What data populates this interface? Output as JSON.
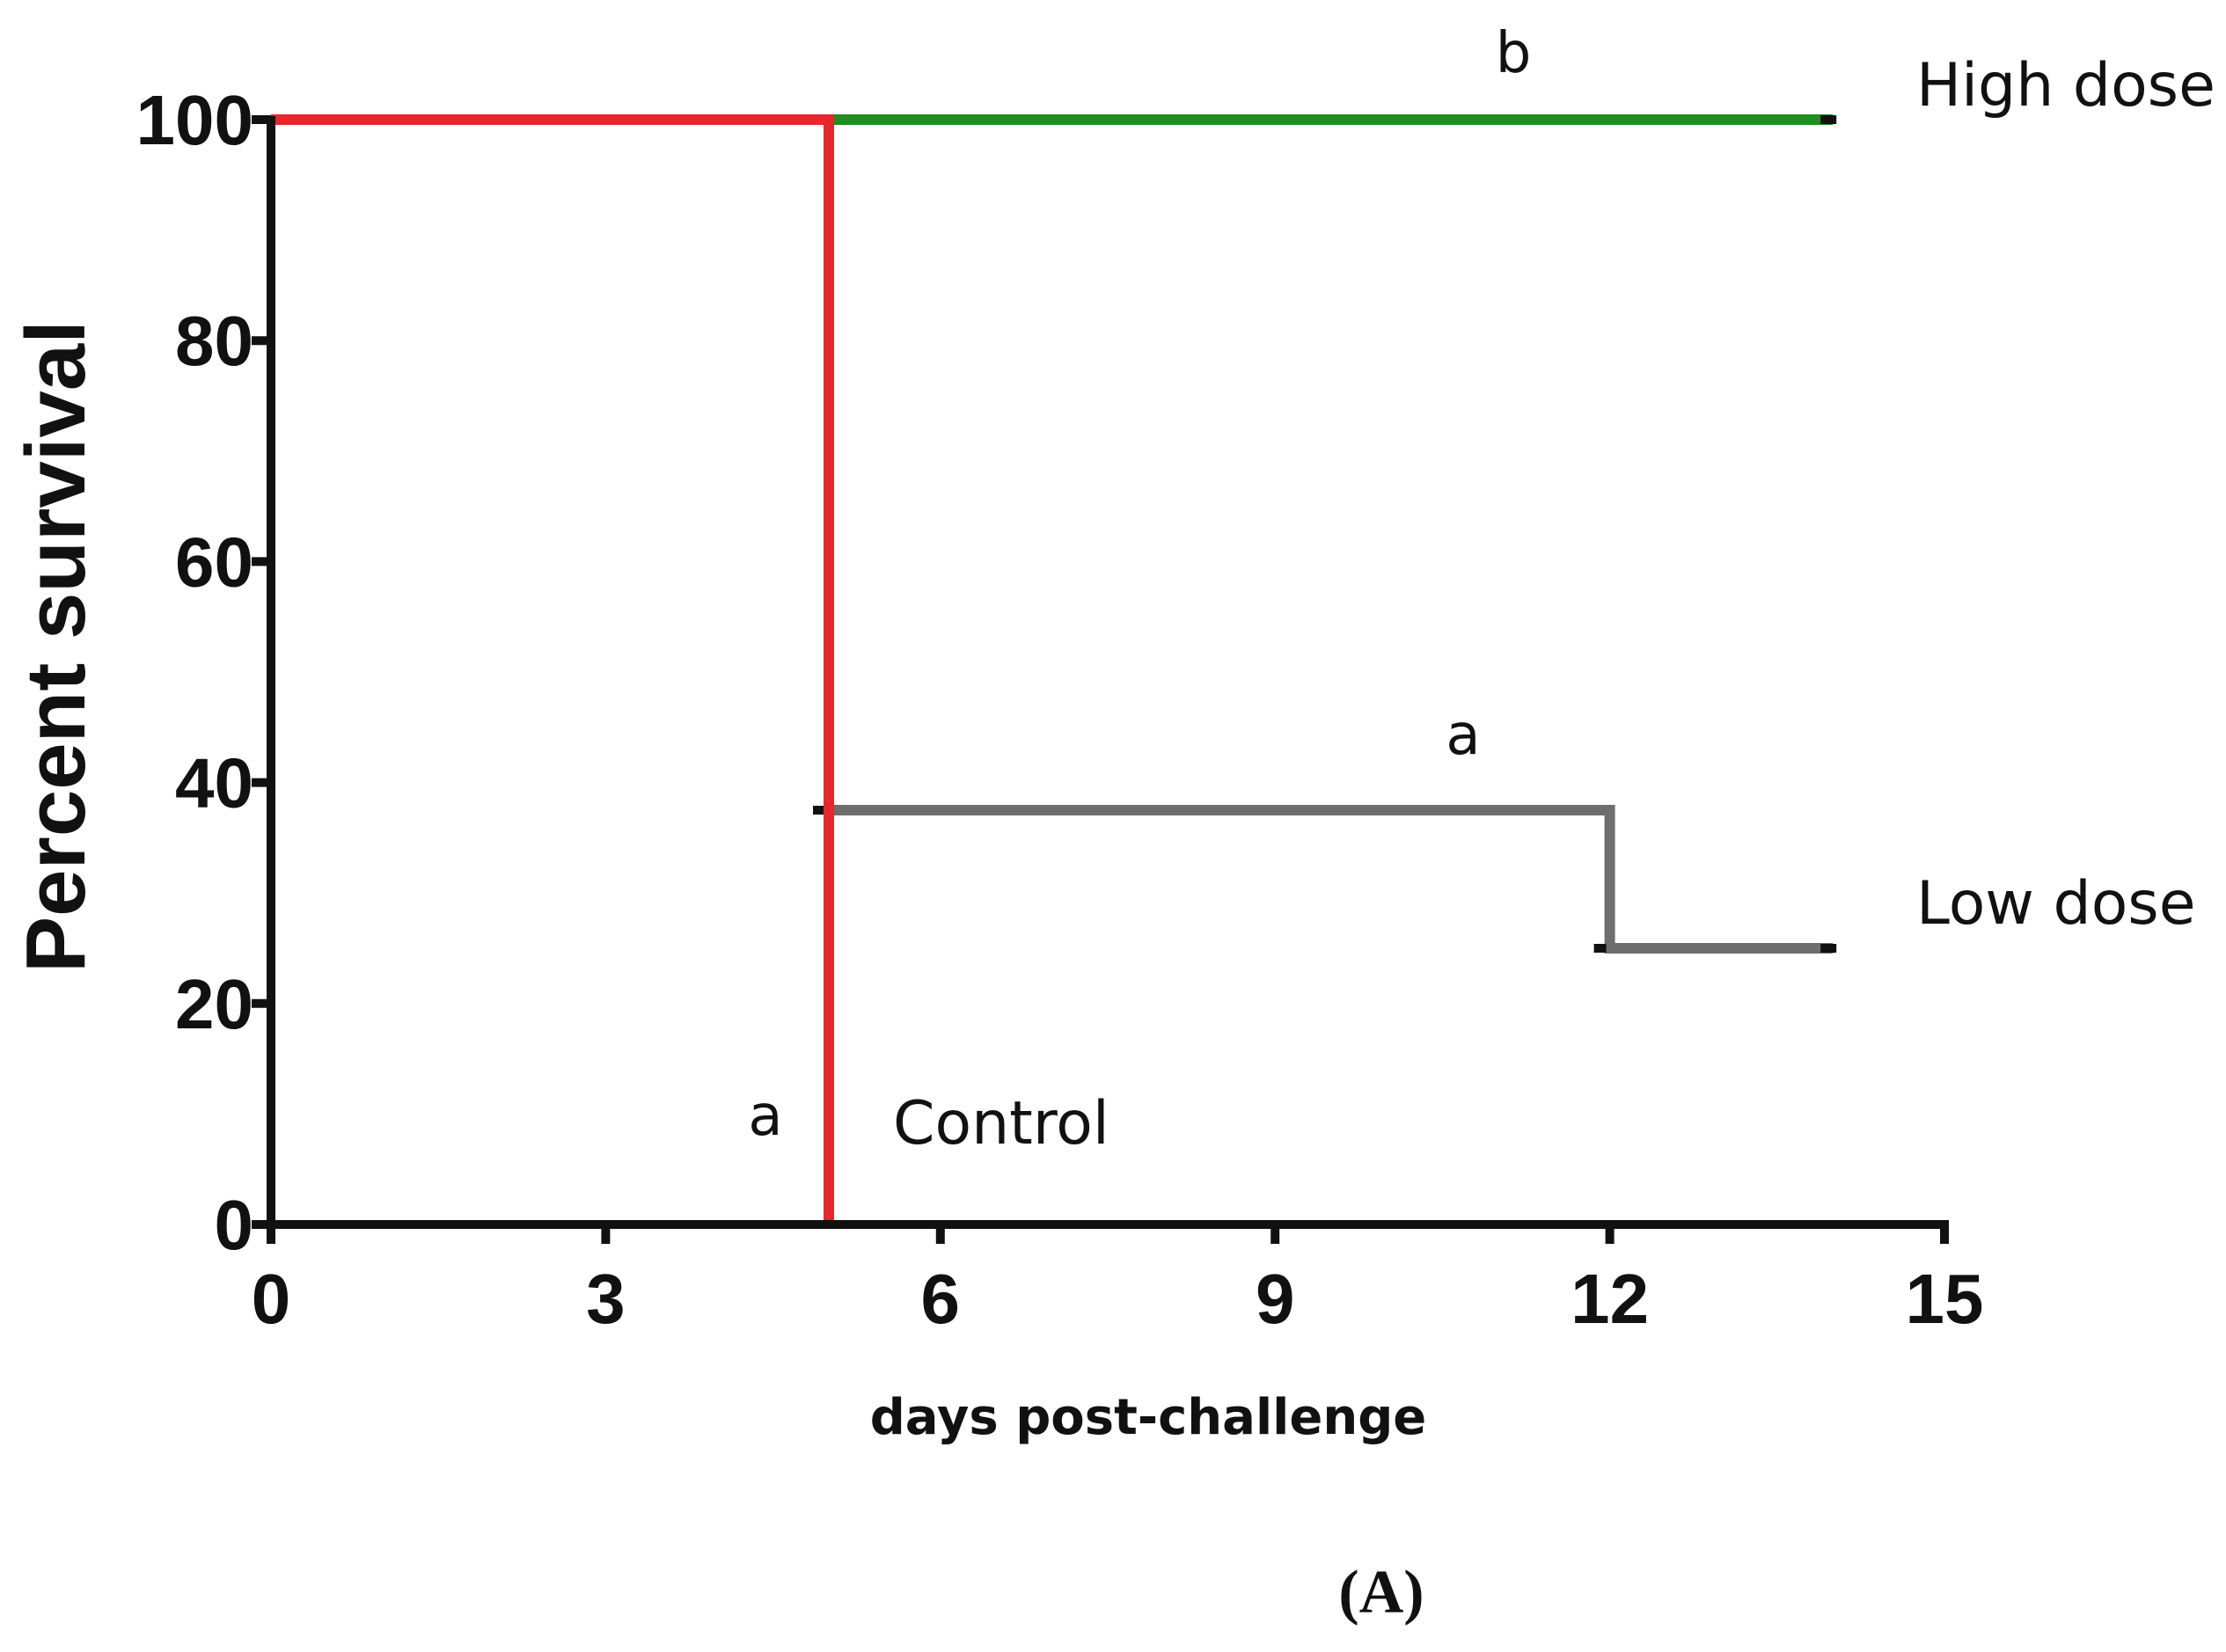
{
  "chart_data": {
    "type": "line",
    "step": true,
    "xlabel": "days post-challenge",
    "ylabel": "Percent survival",
    "xlim": [
      0,
      15
    ],
    "ylim": [
      0,
      100
    ],
    "xticks": [
      0,
      3,
      6,
      9,
      12,
      15
    ],
    "yticks": [
      0,
      20,
      40,
      60,
      80,
      100
    ],
    "grid": false,
    "panel_label": "(A)",
    "series": [
      {
        "name": "High dose",
        "color": "#228b22",
        "significance": "b",
        "x": [
          0,
          5,
          14
        ],
        "y": [
          100,
          100,
          100
        ]
      },
      {
        "name": "Low dose",
        "color": "#6e6e6e",
        "significance": "a",
        "x": [
          0,
          5,
          5,
          12,
          12,
          14
        ],
        "y": [
          100,
          100,
          37.5,
          37.5,
          25,
          25
        ]
      },
      {
        "name": "Control",
        "color": "#e8262b",
        "significance": "a",
        "x": [
          0,
          5,
          5
        ],
        "y": [
          100,
          100,
          0
        ]
      }
    ]
  }
}
